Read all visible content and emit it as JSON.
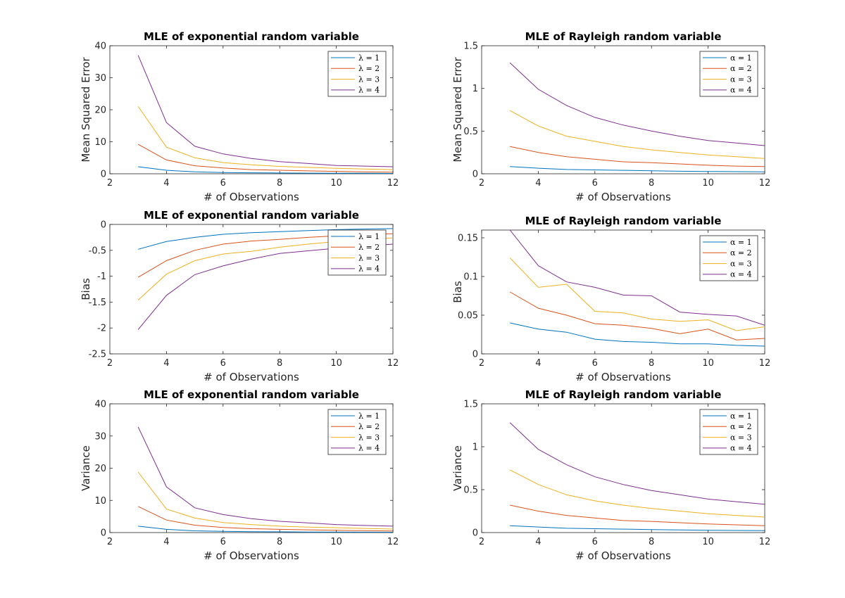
{
  "figure": {
    "colors": [
      "#0072BD",
      "#D95319",
      "#EDB120",
      "#7E2F8E"
    ]
  },
  "chart_data": [
    {
      "type": "line",
      "title": "MLE of exponential random variable",
      "xlabel": "# of Observations",
      "ylabel": "Mean Squared Error",
      "xlim": [
        2,
        12
      ],
      "ylim": [
        0,
        40
      ],
      "xticks": [
        "2",
        "4",
        "6",
        "8",
        "10",
        "12"
      ],
      "yticks": [
        "0",
        "10",
        "20",
        "30",
        "40"
      ],
      "x": [
        3,
        4,
        5,
        6,
        7,
        8,
        9,
        10,
        11,
        12
      ],
      "legend_position": "top-right",
      "series": [
        {
          "name": "λ = 1",
          "values": [
            2.2,
            1.1,
            0.6,
            0.4,
            0.3,
            0.25,
            0.2,
            0.17,
            0.15,
            0.12
          ]
        },
        {
          "name": "λ = 2",
          "values": [
            9.2,
            4.3,
            2.5,
            1.8,
            1.3,
            1.1,
            0.9,
            0.75,
            0.6,
            0.5
          ]
        },
        {
          "name": "λ = 3",
          "values": [
            21,
            8.3,
            5.0,
            3.5,
            2.8,
            2.3,
            2.0,
            1.7,
            1.5,
            1.3
          ]
        },
        {
          "name": "λ = 4",
          "values": [
            37,
            16,
            8.6,
            6.2,
            4.8,
            3.8,
            3.2,
            2.6,
            2.4,
            2.2
          ]
        }
      ]
    },
    {
      "type": "line",
      "title": "MLE of Rayleigh random variable",
      "xlabel": "# of Observations",
      "ylabel": "Mean Squared Error",
      "xlim": [
        2,
        12
      ],
      "ylim": [
        0,
        1.5
      ],
      "xticks": [
        "2",
        "4",
        "6",
        "8",
        "10",
        "12"
      ],
      "yticks": [
        "0",
        "0.5",
        "1",
        "1.5"
      ],
      "x": [
        3,
        4,
        5,
        6,
        7,
        8,
        9,
        10,
        11,
        12
      ],
      "legend_position": "top-right",
      "series": [
        {
          "name": "α = 1",
          "values": [
            0.085,
            0.065,
            0.05,
            0.045,
            0.04,
            0.035,
            0.03,
            0.027,
            0.025,
            0.022
          ]
        },
        {
          "name": "α = 2",
          "values": [
            0.32,
            0.25,
            0.2,
            0.17,
            0.14,
            0.13,
            0.115,
            0.1,
            0.09,
            0.085
          ]
        },
        {
          "name": "α = 3",
          "values": [
            0.74,
            0.56,
            0.44,
            0.38,
            0.32,
            0.28,
            0.25,
            0.22,
            0.2,
            0.18
          ]
        },
        {
          "name": "α = 4",
          "values": [
            1.3,
            0.99,
            0.8,
            0.66,
            0.57,
            0.5,
            0.44,
            0.39,
            0.36,
            0.33
          ]
        }
      ]
    },
    {
      "type": "line",
      "title": "MLE of exponential random variable",
      "xlabel": "# of Observations",
      "ylabel": "Bias",
      "xlim": [
        2,
        12
      ],
      "ylim": [
        -2.5,
        0
      ],
      "xticks": [
        "2",
        "4",
        "6",
        "8",
        "10",
        "12"
      ],
      "yticks": [
        "-2.5",
        "-2",
        "-1.5",
        "-1",
        "-0.5",
        "0"
      ],
      "x": [
        3,
        4,
        5,
        6,
        7,
        8,
        9,
        10,
        11,
        12
      ],
      "legend_position": "top-right",
      "series": [
        {
          "name": "λ = 1",
          "values": [
            -0.48,
            -0.33,
            -0.25,
            -0.19,
            -0.16,
            -0.14,
            -0.12,
            -0.1,
            -0.09,
            -0.08
          ]
        },
        {
          "name": "λ = 2",
          "values": [
            -1.02,
            -0.7,
            -0.5,
            -0.38,
            -0.32,
            -0.29,
            -0.25,
            -0.22,
            -0.19,
            -0.18
          ]
        },
        {
          "name": "λ = 3",
          "values": [
            -1.46,
            -0.96,
            -0.7,
            -0.57,
            -0.52,
            -0.44,
            -0.38,
            -0.33,
            -0.29,
            -0.26
          ]
        },
        {
          "name": "λ = 4",
          "values": [
            -2.03,
            -1.37,
            -0.97,
            -0.8,
            -0.67,
            -0.56,
            -0.51,
            -0.46,
            -0.42,
            -0.38
          ]
        }
      ]
    },
    {
      "type": "line",
      "title": "MLE of Rayleigh random variable",
      "xlabel": "# of Observations",
      "ylabel": "Bias",
      "xlim": [
        2,
        12
      ],
      "ylim": [
        0,
        0.16
      ],
      "xticks": [
        "2",
        "4",
        "6",
        "8",
        "10",
        "12"
      ],
      "yticks": [
        "0",
        "0.05",
        "0.1",
        "0.15"
      ],
      "x": [
        3,
        4,
        5,
        6,
        7,
        8,
        9,
        10,
        11,
        12
      ],
      "legend_position": "top-right",
      "series": [
        {
          "name": "α = 1",
          "values": [
            0.04,
            0.032,
            0.028,
            0.019,
            0.016,
            0.015,
            0.013,
            0.013,
            0.011,
            0.01
          ]
        },
        {
          "name": "α = 2",
          "values": [
            0.08,
            0.059,
            0.05,
            0.039,
            0.037,
            0.033,
            0.026,
            0.032,
            0.018,
            0.02
          ]
        },
        {
          "name": "α = 3",
          "values": [
            0.124,
            0.086,
            0.09,
            0.055,
            0.053,
            0.045,
            0.042,
            0.044,
            0.03,
            0.035
          ]
        },
        {
          "name": "α = 4",
          "values": [
            0.16,
            0.114,
            0.093,
            0.086,
            0.076,
            0.075,
            0.054,
            0.051,
            0.049,
            0.037
          ]
        }
      ]
    },
    {
      "type": "line",
      "title": "MLE of exponential random variable",
      "xlabel": "# of Observations",
      "ylabel": "Variance",
      "xlim": [
        2,
        12
      ],
      "ylim": [
        0,
        40
      ],
      "xticks": [
        "2",
        "4",
        "6",
        "8",
        "10",
        "12"
      ],
      "yticks": [
        "0",
        "10",
        "20",
        "30",
        "40"
      ],
      "x": [
        3,
        4,
        5,
        6,
        7,
        8,
        9,
        10,
        11,
        12
      ],
      "legend_position": "top-right",
      "series": [
        {
          "name": "λ = 1",
          "values": [
            2.0,
            1.0,
            0.55,
            0.38,
            0.28,
            0.23,
            0.18,
            0.15,
            0.13,
            0.11
          ]
        },
        {
          "name": "λ = 2",
          "values": [
            8.1,
            3.9,
            2.3,
            1.6,
            1.2,
            1.0,
            0.85,
            0.7,
            0.6,
            0.5
          ]
        },
        {
          "name": "λ = 3",
          "values": [
            18.8,
            7.3,
            4.5,
            3.1,
            2.5,
            2.0,
            1.7,
            1.5,
            1.3,
            1.1
          ]
        },
        {
          "name": "λ = 4",
          "values": [
            32.8,
            14.2,
            7.7,
            5.6,
            4.3,
            3.5,
            3.0,
            2.5,
            2.2,
            2.0
          ]
        }
      ]
    },
    {
      "type": "line",
      "title": "MLE of Rayleigh random variable",
      "xlabel": "# of Observations",
      "ylabel": "Variance",
      "xlim": [
        2,
        12
      ],
      "ylim": [
        0,
        1.5
      ],
      "xticks": [
        "2",
        "4",
        "6",
        "8",
        "10",
        "12"
      ],
      "yticks": [
        "0",
        "0.5",
        "1",
        "1.5"
      ],
      "x": [
        3,
        4,
        5,
        6,
        7,
        8,
        9,
        10,
        11,
        12
      ],
      "legend_position": "top-right",
      "series": [
        {
          "name": "α = 1",
          "values": [
            0.08,
            0.065,
            0.05,
            0.045,
            0.04,
            0.035,
            0.03,
            0.027,
            0.025,
            0.022
          ]
        },
        {
          "name": "α = 2",
          "values": [
            0.32,
            0.25,
            0.2,
            0.17,
            0.14,
            0.13,
            0.115,
            0.1,
            0.09,
            0.08
          ]
        },
        {
          "name": "α = 3",
          "values": [
            0.73,
            0.56,
            0.44,
            0.37,
            0.32,
            0.28,
            0.25,
            0.22,
            0.2,
            0.18
          ]
        },
        {
          "name": "α = 4",
          "values": [
            1.28,
            0.97,
            0.79,
            0.65,
            0.56,
            0.49,
            0.44,
            0.39,
            0.36,
            0.33
          ]
        }
      ]
    }
  ]
}
